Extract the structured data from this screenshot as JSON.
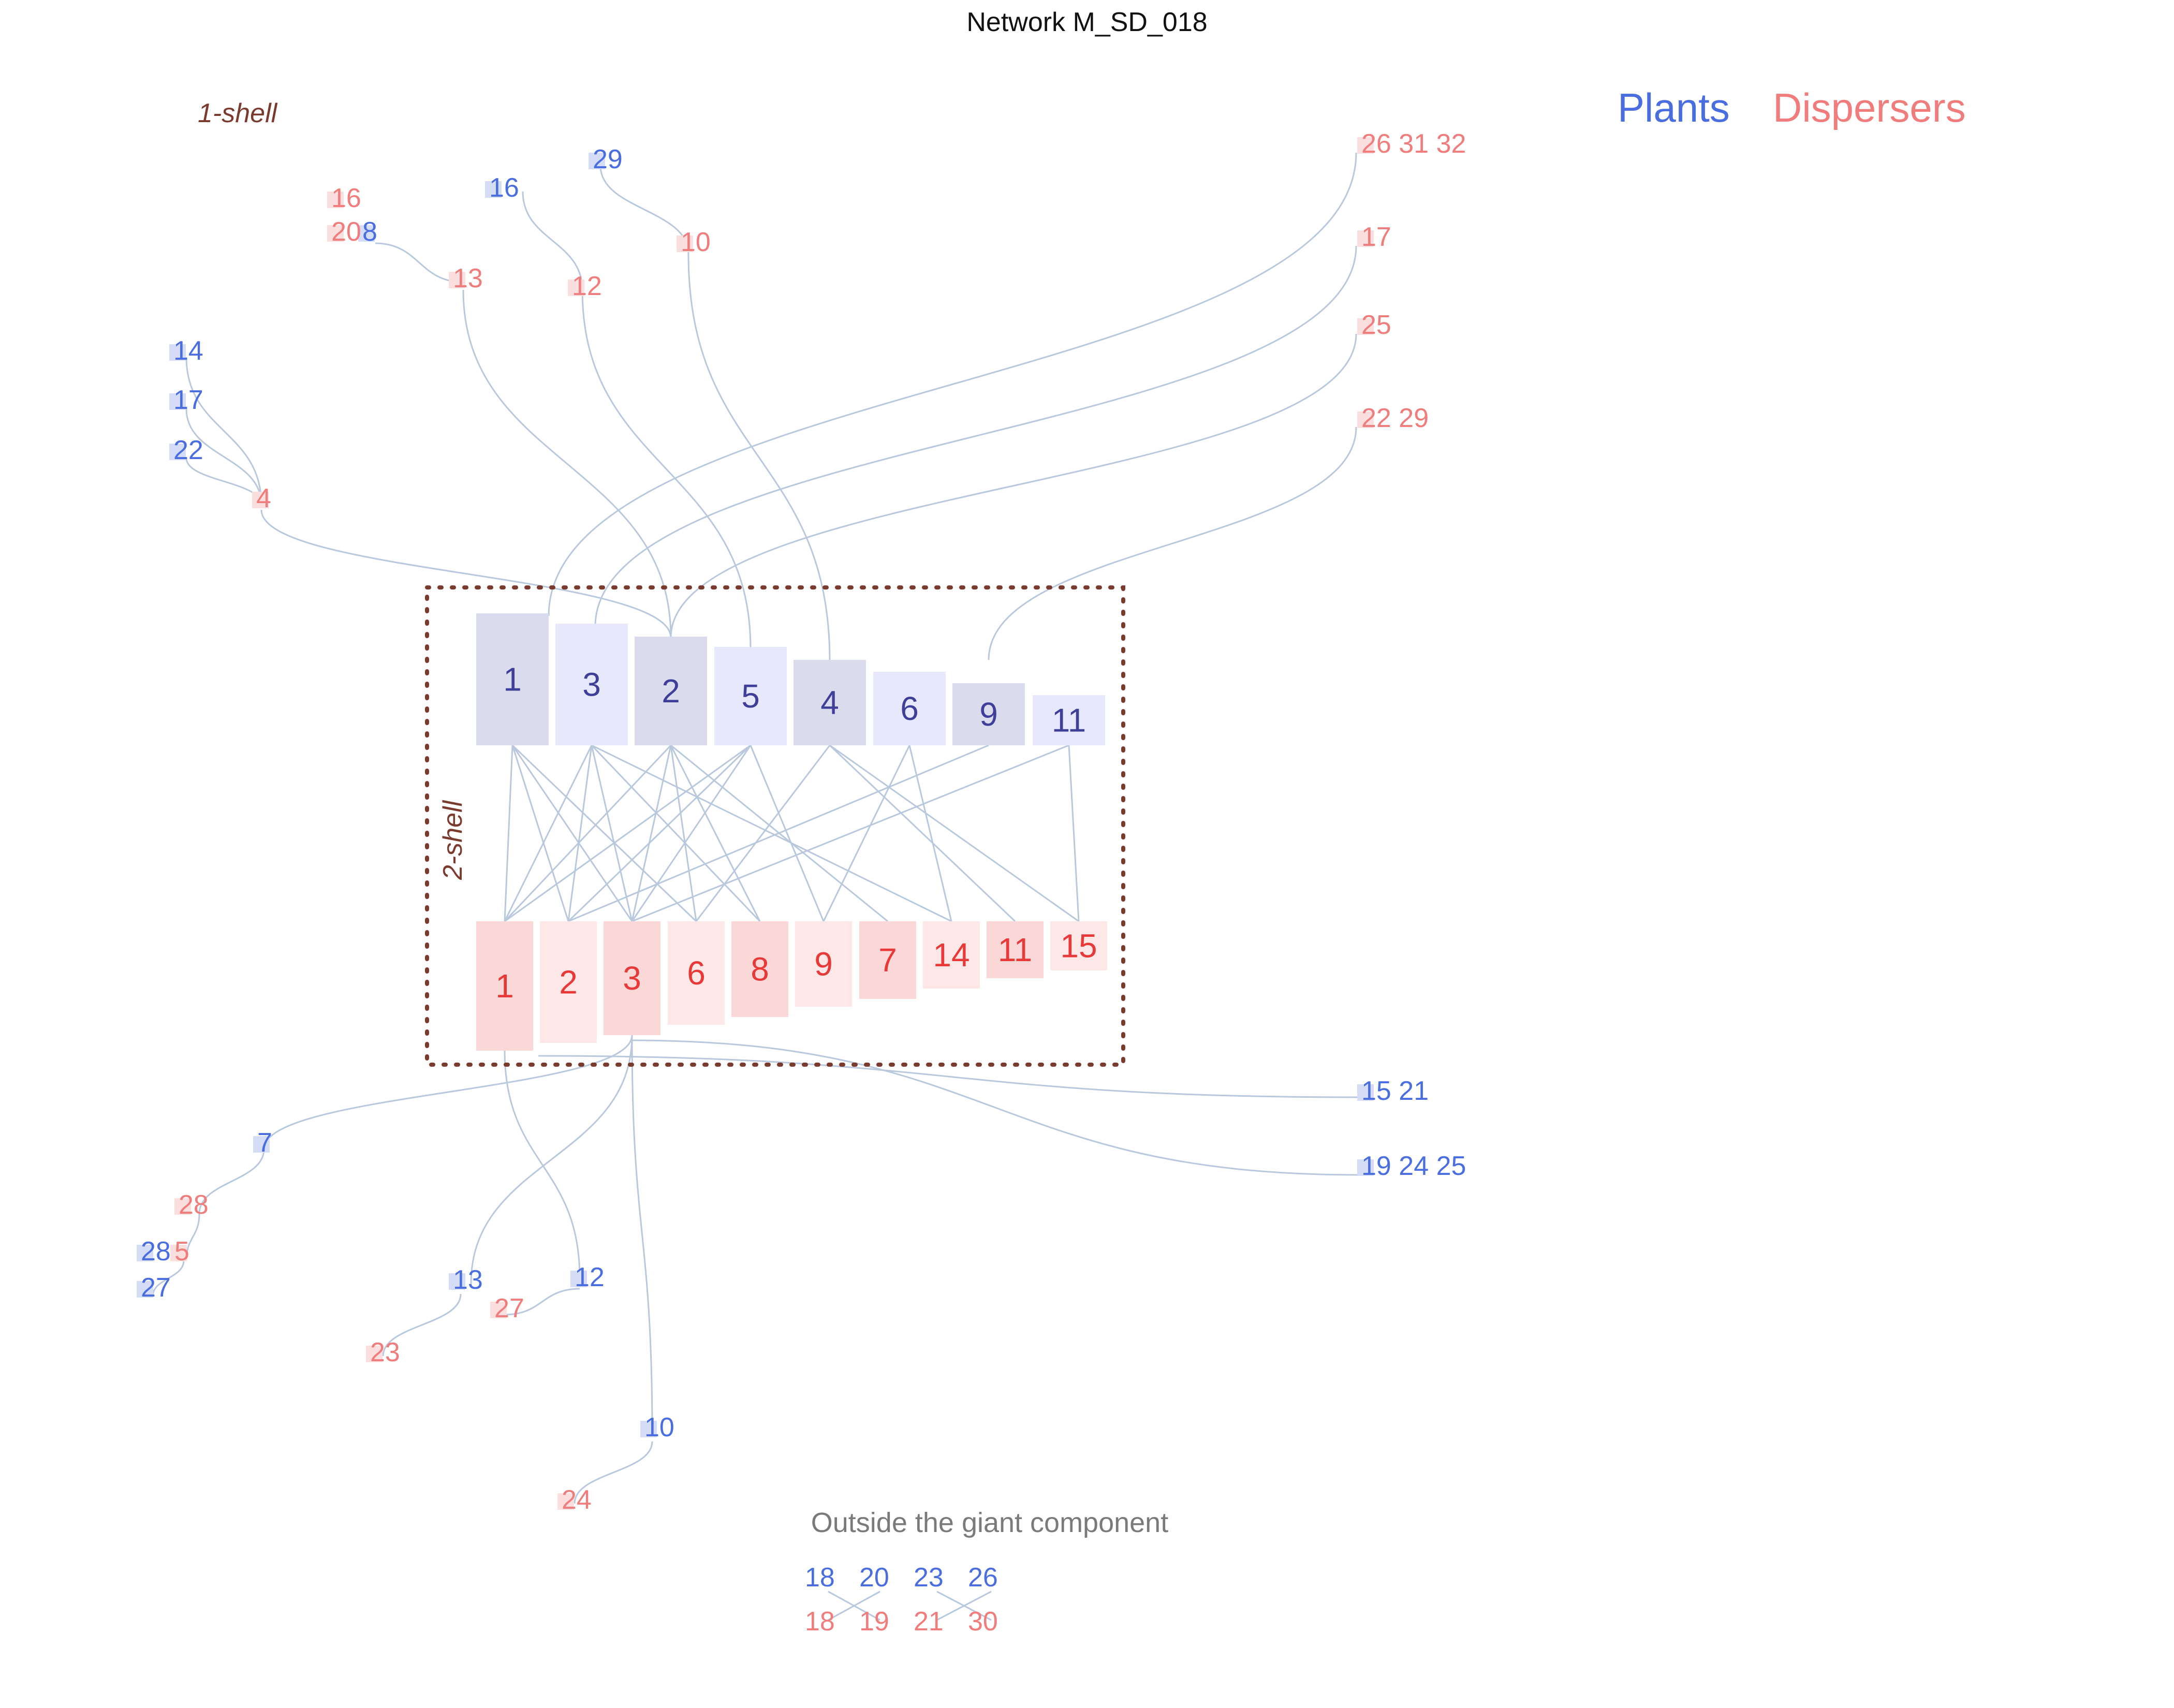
{
  "title": "Network M_SD_018",
  "legend": {
    "plants": "Plants",
    "dispersers": "Dispersers"
  },
  "shell_labels": {
    "outer": "1-shell",
    "inner": "2-shell"
  },
  "outside_label": "Outside the giant component",
  "colors": {
    "plant_text": "#4a6ee0",
    "disperser_text": "#f07c7c",
    "core_plant_text": "#3f3f9a",
    "core_disperser_text": "#e83838",
    "link": "#b9c8dc",
    "shell_box": "#7a3b2e",
    "plant_fill_dark": "#dadbec",
    "plant_fill_light": "#e7e8fb",
    "disp_fill_dark": "#fbd8d8",
    "disp_fill_light": "#fde7e7"
  },
  "core": {
    "plants": [
      "1",
      "3",
      "2",
      "5",
      "4",
      "6",
      "9",
      "11"
    ],
    "dispersers": [
      "1",
      "2",
      "3",
      "6",
      "8",
      "9",
      "7",
      "14",
      "11",
      "15"
    ]
  },
  "periphery": {
    "plants": [
      "14",
      "17",
      "22",
      "16",
      "29",
      "8",
      "7",
      "28",
      "27",
      "13",
      "12",
      "10",
      "15  21",
      "19 24  25"
    ],
    "dispersers": [
      "16",
      "20",
      "13",
      "12",
      "10",
      "4",
      "26 31  32",
      "17",
      "25",
      "22  29",
      "28",
      "5",
      "23",
      "27",
      "24"
    ]
  },
  "outside": {
    "plants": [
      "18",
      "20",
      "23",
      "26"
    ],
    "dispersers": [
      "18",
      "19",
      "21",
      "30"
    ]
  }
}
